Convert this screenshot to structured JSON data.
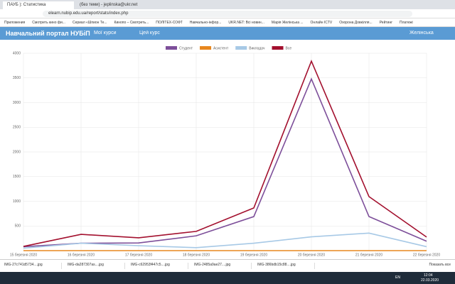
{
  "browser": {
    "tabs": [
      "ПАУБ ): Статистика",
      "(без теми) - jeplinska@ukr.net"
    ],
    "url": "elearn.nubip.edu.ua/report/stats/index.php",
    "bookmarks": [
      "Приложения",
      "Смотреть кино фи...",
      "Сериал «Шпион Те...",
      "Кинопо – Смотреть...",
      "ПОЛІТЕХ-СОФТ",
      "Навчально-інфор...",
      "UKR.NET: Всі новин...",
      "Марія Желінська ...",
      "Онлайн ICTV",
      "Охорона Довкілля...",
      "Рейтинг",
      "Платежі"
    ]
  },
  "navbar": {
    "brand": "Навчальний портал НУБіП",
    "menu": [
      "Мої курси",
      "Цей курс"
    ],
    "user": "Желінська"
  },
  "chart_data": {
    "type": "line",
    "categories": [
      "15 березня 2020",
      "16 березня 2020",
      "17 березня 2020",
      "18 березня 2020",
      "19 березня 2020",
      "20 березня 2020",
      "21 березня 2020",
      "22 березня 2020"
    ],
    "series": [
      {
        "name": "Студент",
        "color": "#7d4f9a",
        "values": [
          80,
          150,
          155,
          300,
          690,
          3480,
          690,
          190
        ]
      },
      {
        "name": "Асистент",
        "color": "#e8871e",
        "values": [
          0,
          0,
          0,
          0,
          0,
          0,
          0,
          0
        ]
      },
      {
        "name": "Викладач",
        "color": "#a7c9e6",
        "values": [
          50,
          150,
          100,
          60,
          150,
          280,
          355,
          80
        ]
      },
      {
        "name": "Все",
        "color": "#a3102e",
        "values": [
          85,
          330,
          260,
          390,
          865,
          3840,
          1095,
          275
        ]
      }
    ],
    "ylim": [
      0,
      4000
    ],
    "yticks": [
      500,
      1000,
      1500,
      2000,
      2500,
      3000,
      3500,
      4000
    ],
    "grid": true,
    "legend": "top"
  },
  "downloads": {
    "files": [
      "IMG-27c741d5734....jpg",
      "IMG-da287307as....jpg",
      "IMG-c62953f447c5....jpg",
      "IMG-2485a9ae27....jpg",
      "IMG-386bdb15c88....jpg"
    ],
    "show_all": "Показать все"
  },
  "taskbar": {
    "lang": "EN",
    "time": "12:04",
    "date": "22.03.2020"
  }
}
